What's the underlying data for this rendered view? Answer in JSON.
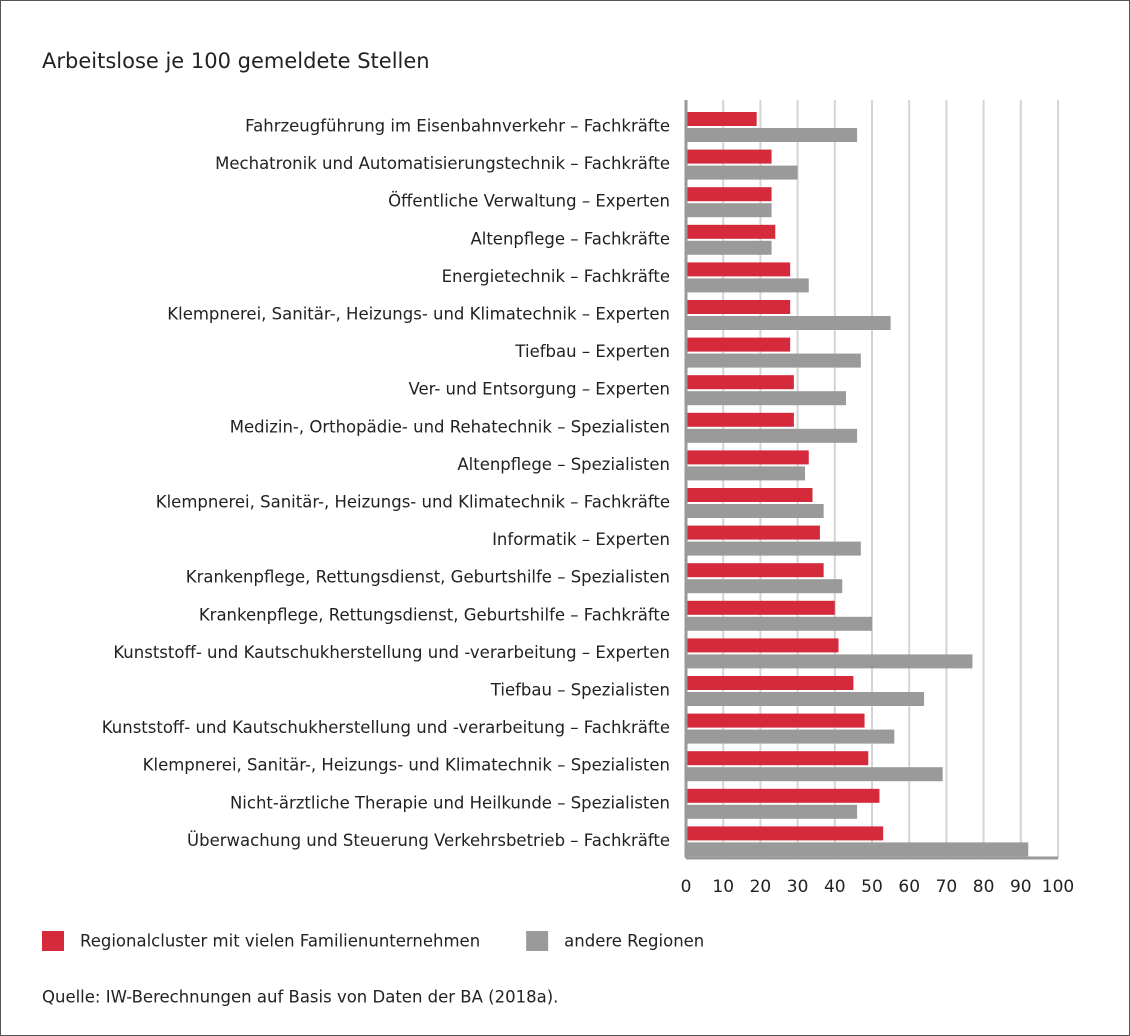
{
  "chart_data": {
    "type": "barh",
    "title": "Arbeitslose je 100 gemeldete Stellen",
    "categories": [
      "Fahrzeugführung im Eisenbahnverkehr – Fachkräfte",
      "Mechatronik und Automatisierungstechnik – Fachkräfte",
      "Öffentliche Verwaltung – Experten",
      "Altenpflege – Fachkräfte",
      "Energietechnik – Fachkräfte",
      "Klempnerei, Sanitär-, Heizungs- und Klimatechnik – Experten",
      "Tiefbau – Experten",
      "Ver- und Entsorgung – Experten",
      "Medizin-, Orthopädie- und Rehatechnik – Spezialisten",
      "Altenpflege – Spezialisten",
      "Klempnerei, Sanitär-, Heizungs- und Klimatechnik – Fachkräfte",
      "Informatik – Experten",
      "Krankenpflege, Rettungsdienst, Geburtshilfe – Spezialisten",
      "Krankenpflege, Rettungsdienst, Geburtshilfe – Fachkräfte",
      "Kunststoff- und Kautschukherstellung und -verarbeitung – Experten",
      "Tiefbau – Spezialisten",
      "Kunststoff- und Kautschukherstellung und -verarbeitung – Fachkräfte",
      "Klempnerei, Sanitär-, Heizungs- und Klimatechnik – Spezialisten",
      "Nicht-ärztliche Therapie und Heilkunde – Spezialisten",
      "Überwachung und Steuerung Verkehrsbetrieb – Fachkräfte"
    ],
    "series": [
      {
        "name": "Regionalcluster mit vielen Familienunternehmen",
        "color": "#d42a3c",
        "values": [
          19,
          23,
          23,
          24,
          28,
          28,
          28,
          29,
          29,
          33,
          34,
          36,
          37,
          40,
          41,
          45,
          48,
          49,
          52,
          53
        ]
      },
      {
        "name": "andere Regionen",
        "color": "#9a9a9a",
        "values": [
          46,
          30,
          23,
          23,
          33,
          55,
          47,
          43,
          46,
          32,
          37,
          47,
          42,
          50,
          77,
          64,
          56,
          69,
          46,
          92
        ]
      }
    ],
    "xlim": [
      0,
      100
    ],
    "xticks": [
      0,
      10,
      20,
      30,
      40,
      50,
      60,
      70,
      80,
      90,
      100
    ],
    "grid": true,
    "source": "Quelle: IW-Berechnungen auf Basis von Daten der BA (2018a)."
  }
}
